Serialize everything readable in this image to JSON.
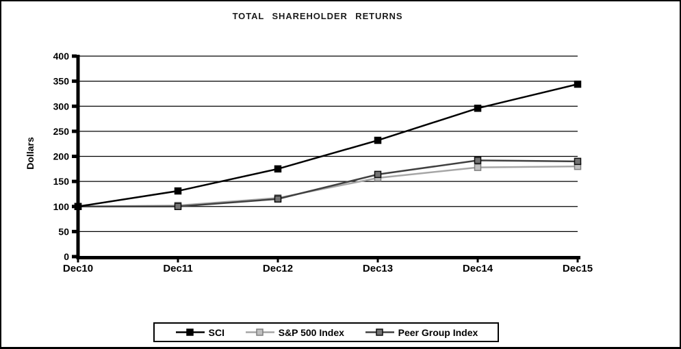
{
  "chart_data": {
    "type": "line",
    "title": "TOTAL SHAREHOLDER RETURNS",
    "ylabel": "Dollars",
    "xlabel": "",
    "x": [
      "Dec10",
      "Dec11",
      "Dec12",
      "Dec13",
      "Dec14",
      "Dec15"
    ],
    "series": [
      {
        "name": "SCI",
        "values": [
          100,
          131,
          175,
          232,
          296,
          344
        ],
        "color": "#000000",
        "marker_fill": "#000000",
        "marker_stroke": "#000000"
      },
      {
        "name": "S&P 500 Index",
        "values": [
          100,
          102,
          117,
          157,
          178,
          180
        ],
        "color": "#a6a6a6",
        "marker_fill": "#c0c0c0",
        "marker_stroke": "#7f7f7f"
      },
      {
        "name": "Peer Group Index",
        "values": [
          100,
          100,
          115,
          164,
          192,
          190
        ],
        "color": "#404040",
        "marker_fill": "#737373",
        "marker_stroke": "#0d0d0d"
      }
    ],
    "ylim": [
      0,
      400
    ],
    "yticks": [
      0,
      50,
      100,
      150,
      200,
      250,
      300,
      350,
      400
    ],
    "grid": "horizontal",
    "axis_color": "#000000",
    "legend_position": "bottom-center"
  }
}
